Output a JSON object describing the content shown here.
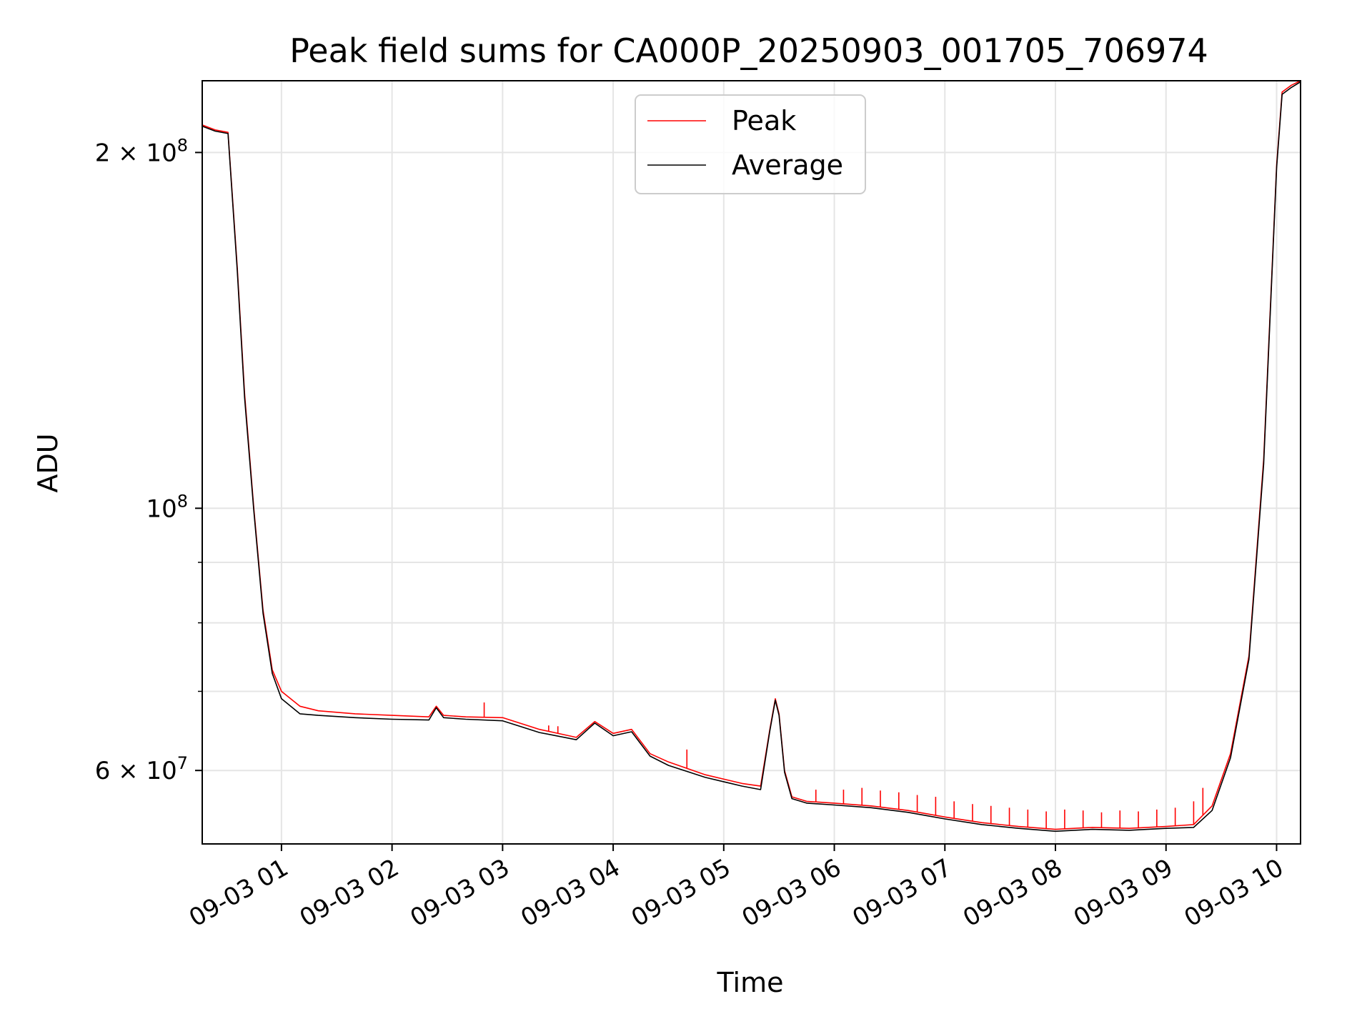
{
  "chart_data": {
    "type": "line",
    "title": "Peak field sums for CA000P_20250903_001705_706974",
    "xlabel": "Time",
    "ylabel": "ADU",
    "y_scale": "log",
    "grid": true,
    "legend_position": "top-center",
    "xlim": [
      "2025-09-03 00:17",
      "2025-09-03 10:13"
    ],
    "ylim": [
      52000000,
      230000000
    ],
    "x_ticks": [
      {
        "time": "2025-09-03 01:00",
        "label": "09-03 01"
      },
      {
        "time": "2025-09-03 02:00",
        "label": "09-03 02"
      },
      {
        "time": "2025-09-03 03:00",
        "label": "09-03 03"
      },
      {
        "time": "2025-09-03 04:00",
        "label": "09-03 04"
      },
      {
        "time": "2025-09-03 05:00",
        "label": "09-03 05"
      },
      {
        "time": "2025-09-03 06:00",
        "label": "09-03 06"
      },
      {
        "time": "2025-09-03 07:00",
        "label": "09-03 07"
      },
      {
        "time": "2025-09-03 08:00",
        "label": "09-03 08"
      },
      {
        "time": "2025-09-03 09:00",
        "label": "09-03 09"
      },
      {
        "time": "2025-09-03 10:00",
        "label": "09-03 10"
      }
    ],
    "y_ticks": [
      {
        "value": 200000000,
        "base": "2 × 10",
        "exp": "8"
      },
      {
        "value": 100000000,
        "base": "10",
        "exp": "8"
      },
      {
        "value": 60000000,
        "base": "6 × 10",
        "exp": "7"
      }
    ],
    "y_minor_ticks": [
      70000000,
      80000000,
      90000000
    ],
    "series": [
      {
        "name": "Peak",
        "color": "#ff0000",
        "x": [
          "2025-09-03 00:17",
          "2025-09-03 00:24",
          "2025-09-03 00:31",
          "2025-09-03 00:36",
          "2025-09-03 00:40",
          "2025-09-03 00:45",
          "2025-09-03 00:50",
          "2025-09-03 00:55",
          "2025-09-03 01:00",
          "2025-09-03 01:10",
          "2025-09-03 01:20",
          "2025-09-03 01:40",
          "2025-09-03 02:00",
          "2025-09-03 02:20",
          "2025-09-03 02:24",
          "2025-09-03 02:28",
          "2025-09-03 02:40",
          "2025-09-03 03:00",
          "2025-09-03 03:20",
          "2025-09-03 03:40",
          "2025-09-03 03:50",
          "2025-09-03 04:00",
          "2025-09-03 04:10",
          "2025-09-03 04:20",
          "2025-09-03 04:30",
          "2025-09-03 04:50",
          "2025-09-03 05:10",
          "2025-09-03 05:20",
          "2025-09-03 05:25",
          "2025-09-03 05:28",
          "2025-09-03 05:30",
          "2025-09-03 05:33",
          "2025-09-03 05:37",
          "2025-09-03 05:45",
          "2025-09-03 06:00",
          "2025-09-03 06:20",
          "2025-09-03 06:40",
          "2025-09-03 07:00",
          "2025-09-03 07:20",
          "2025-09-03 07:40",
          "2025-09-03 08:00",
          "2025-09-03 08:20",
          "2025-09-03 08:40",
          "2025-09-03 09:00",
          "2025-09-03 09:15",
          "2025-09-03 09:25",
          "2025-09-03 09:35",
          "2025-09-03 09:45",
          "2025-09-03 09:53",
          "2025-09-03 10:00",
          "2025-09-03 10:03",
          "2025-09-03 10:08",
          "2025-09-03 10:13"
        ],
        "values": [
          211000000,
          209000000,
          208000000,
          160000000,
          125000000,
          100000000,
          82000000,
          73000000,
          70000000,
          68000000,
          67400000,
          67000000,
          66800000,
          66600000,
          68000000,
          66800000,
          66600000,
          66500000,
          65000000,
          64000000,
          66000000,
          64500000,
          65000000,
          62000000,
          61000000,
          59500000,
          58500000,
          58200000,
          65000000,
          69000000,
          67000000,
          60000000,
          57000000,
          56500000,
          56300000,
          56000000,
          55500000,
          54800000,
          54200000,
          53800000,
          53500000,
          53700000,
          53600000,
          53800000,
          54000000,
          56000000,
          62000000,
          75000000,
          110000000,
          195000000,
          225000000,
          228000000,
          230000000
        ],
        "upward_spikes": [
          {
            "time": "2025-09-03 02:50",
            "value": 68500000
          },
          {
            "time": "2025-09-03 03:25",
            "value": 65500000
          },
          {
            "time": "2025-09-03 03:30",
            "value": 65400000
          },
          {
            "time": "2025-09-03 04:40",
            "value": 62500000
          },
          {
            "time": "2025-09-03 05:50",
            "value": 57800000
          },
          {
            "time": "2025-09-03 06:05",
            "value": 57800000
          },
          {
            "time": "2025-09-03 06:15",
            "value": 58000000
          },
          {
            "time": "2025-09-03 06:25",
            "value": 57700000
          },
          {
            "time": "2025-09-03 06:35",
            "value": 57500000
          },
          {
            "time": "2025-09-03 06:45",
            "value": 57200000
          },
          {
            "time": "2025-09-03 06:55",
            "value": 57000000
          },
          {
            "time": "2025-09-03 07:05",
            "value": 56500000
          },
          {
            "time": "2025-09-03 07:15",
            "value": 56200000
          },
          {
            "time": "2025-09-03 07:25",
            "value": 56000000
          },
          {
            "time": "2025-09-03 07:35",
            "value": 55800000
          },
          {
            "time": "2025-09-03 07:45",
            "value": 55600000
          },
          {
            "time": "2025-09-03 07:55",
            "value": 55400000
          },
          {
            "time": "2025-09-03 08:05",
            "value": 55600000
          },
          {
            "time": "2025-09-03 08:15",
            "value": 55500000
          },
          {
            "time": "2025-09-03 08:25",
            "value": 55300000
          },
          {
            "time": "2025-09-03 08:35",
            "value": 55500000
          },
          {
            "time": "2025-09-03 08:45",
            "value": 55400000
          },
          {
            "time": "2025-09-03 08:55",
            "value": 55600000
          },
          {
            "time": "2025-09-03 09:05",
            "value": 55800000
          },
          {
            "time": "2025-09-03 09:15",
            "value": 56500000
          },
          {
            "time": "2025-09-03 09:20",
            "value": 58000000
          }
        ]
      },
      {
        "name": "Average",
        "color": "#000000",
        "x": [
          "2025-09-03 00:17",
          "2025-09-03 00:24",
          "2025-09-03 00:31",
          "2025-09-03 00:36",
          "2025-09-03 00:40",
          "2025-09-03 00:45",
          "2025-09-03 00:50",
          "2025-09-03 00:55",
          "2025-09-03 01:00",
          "2025-09-03 01:10",
          "2025-09-03 01:20",
          "2025-09-03 01:40",
          "2025-09-03 02:00",
          "2025-09-03 02:20",
          "2025-09-03 02:24",
          "2025-09-03 02:28",
          "2025-09-03 02:40",
          "2025-09-03 03:00",
          "2025-09-03 03:20",
          "2025-09-03 03:40",
          "2025-09-03 03:50",
          "2025-09-03 04:00",
          "2025-09-03 04:10",
          "2025-09-03 04:20",
          "2025-09-03 04:30",
          "2025-09-03 04:50",
          "2025-09-03 05:10",
          "2025-09-03 05:20",
          "2025-09-03 05:25",
          "2025-09-03 05:28",
          "2025-09-03 05:30",
          "2025-09-03 05:33",
          "2025-09-03 05:37",
          "2025-09-03 05:45",
          "2025-09-03 06:00",
          "2025-09-03 06:20",
          "2025-09-03 06:40",
          "2025-09-03 07:00",
          "2025-09-03 07:20",
          "2025-09-03 07:40",
          "2025-09-03 08:00",
          "2025-09-03 08:20",
          "2025-09-03 08:40",
          "2025-09-03 09:00",
          "2025-09-03 09:15",
          "2025-09-03 09:25",
          "2025-09-03 09:35",
          "2025-09-03 09:45",
          "2025-09-03 09:53",
          "2025-09-03 10:00",
          "2025-09-03 10:03",
          "2025-09-03 10:08",
          "2025-09-03 10:13"
        ],
        "values": [
          210500000,
          208500000,
          207500000,
          159000000,
          124000000,
          99500000,
          81500000,
          72500000,
          69000000,
          67000000,
          66800000,
          66500000,
          66300000,
          66200000,
          67800000,
          66500000,
          66300000,
          66100000,
          64600000,
          63700000,
          65800000,
          64200000,
          64700000,
          61700000,
          60600000,
          59200000,
          58200000,
          57800000,
          64800000,
          68800000,
          66800000,
          59800000,
          56800000,
          56300000,
          56100000,
          55800000,
          55300000,
          54600000,
          54000000,
          53600000,
          53300000,
          53500000,
          53400000,
          53600000,
          53700000,
          55500000,
          61500000,
          74500000,
          109000000,
          194000000,
          224000000,
          227000000,
          229500000
        ]
      }
    ]
  }
}
